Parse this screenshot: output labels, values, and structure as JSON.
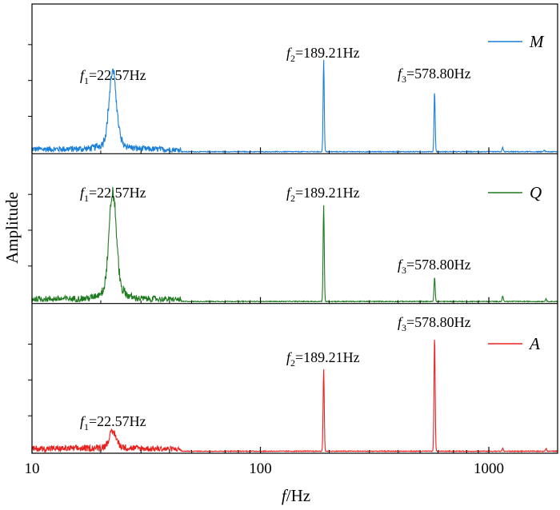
{
  "chart_data": {
    "type": "line",
    "xscale": "log",
    "xlim": [
      10,
      2000
    ],
    "xticks": [
      "10",
      "100",
      "1000"
    ],
    "xlabel_var": "f",
    "xlabel_unit": "/Hz",
    "ylabel": "Amplitude",
    "colors": {
      "M": "#1a7fd8",
      "Q": "#1e7a1e",
      "A": "#e8201e",
      "axis": "#000000"
    },
    "panels": [
      {
        "series_name": "M",
        "color": "#1a7fd8",
        "ylim": [
          0,
          1
        ],
        "peaks": [
          {
            "x": 22.57,
            "y": 0.48,
            "label_var": "f",
            "label_sub": "1",
            "label_text": "=22.57Hz"
          },
          {
            "x": 189.21,
            "y": 0.64,
            "label_var": "f",
            "label_sub": "2",
            "label_text": "=189.21Hz"
          },
          {
            "x": 578.8,
            "y": 0.42,
            "label_var": "f",
            "label_sub": "3",
            "label_text": "=578.80Hz"
          },
          {
            "x": 1150,
            "y": 0.03
          },
          {
            "x": 1750,
            "y": 0.01
          }
        ]
      },
      {
        "series_name": "Q",
        "color": "#1e7a1e",
        "ylim": [
          0,
          1
        ],
        "peaks": [
          {
            "x": 22.57,
            "y": 0.66,
            "label_var": "f",
            "label_sub": "1",
            "label_text": "=22.57Hz"
          },
          {
            "x": 189.21,
            "y": 0.67,
            "label_var": "f",
            "label_sub": "2",
            "label_text": "=189.21Hz"
          },
          {
            "x": 578.8,
            "y": 0.17,
            "label_var": "f",
            "label_sub": "3",
            "label_text": "=578.80Hz"
          },
          {
            "x": 1150,
            "y": 0.04
          },
          {
            "x": 1780,
            "y": 0.02
          }
        ]
      },
      {
        "series_name": "A",
        "color": "#e8201e",
        "ylim": [
          0,
          1
        ],
        "peaks": [
          {
            "x": 22.57,
            "y": 0.1,
            "label_var": "f",
            "label_sub": "1",
            "label_text": "=22.57Hz"
          },
          {
            "x": 189.21,
            "y": 0.57,
            "label_var": "f",
            "label_sub": "2",
            "label_text": "=189.21Hz"
          },
          {
            "x": 578.8,
            "y": 0.8,
            "label_var": "f",
            "label_sub": "3",
            "label_text": "=578.80Hz"
          },
          {
            "x": 1150,
            "y": 0.02
          },
          {
            "x": 1780,
            "y": 0.02
          }
        ]
      }
    ]
  }
}
